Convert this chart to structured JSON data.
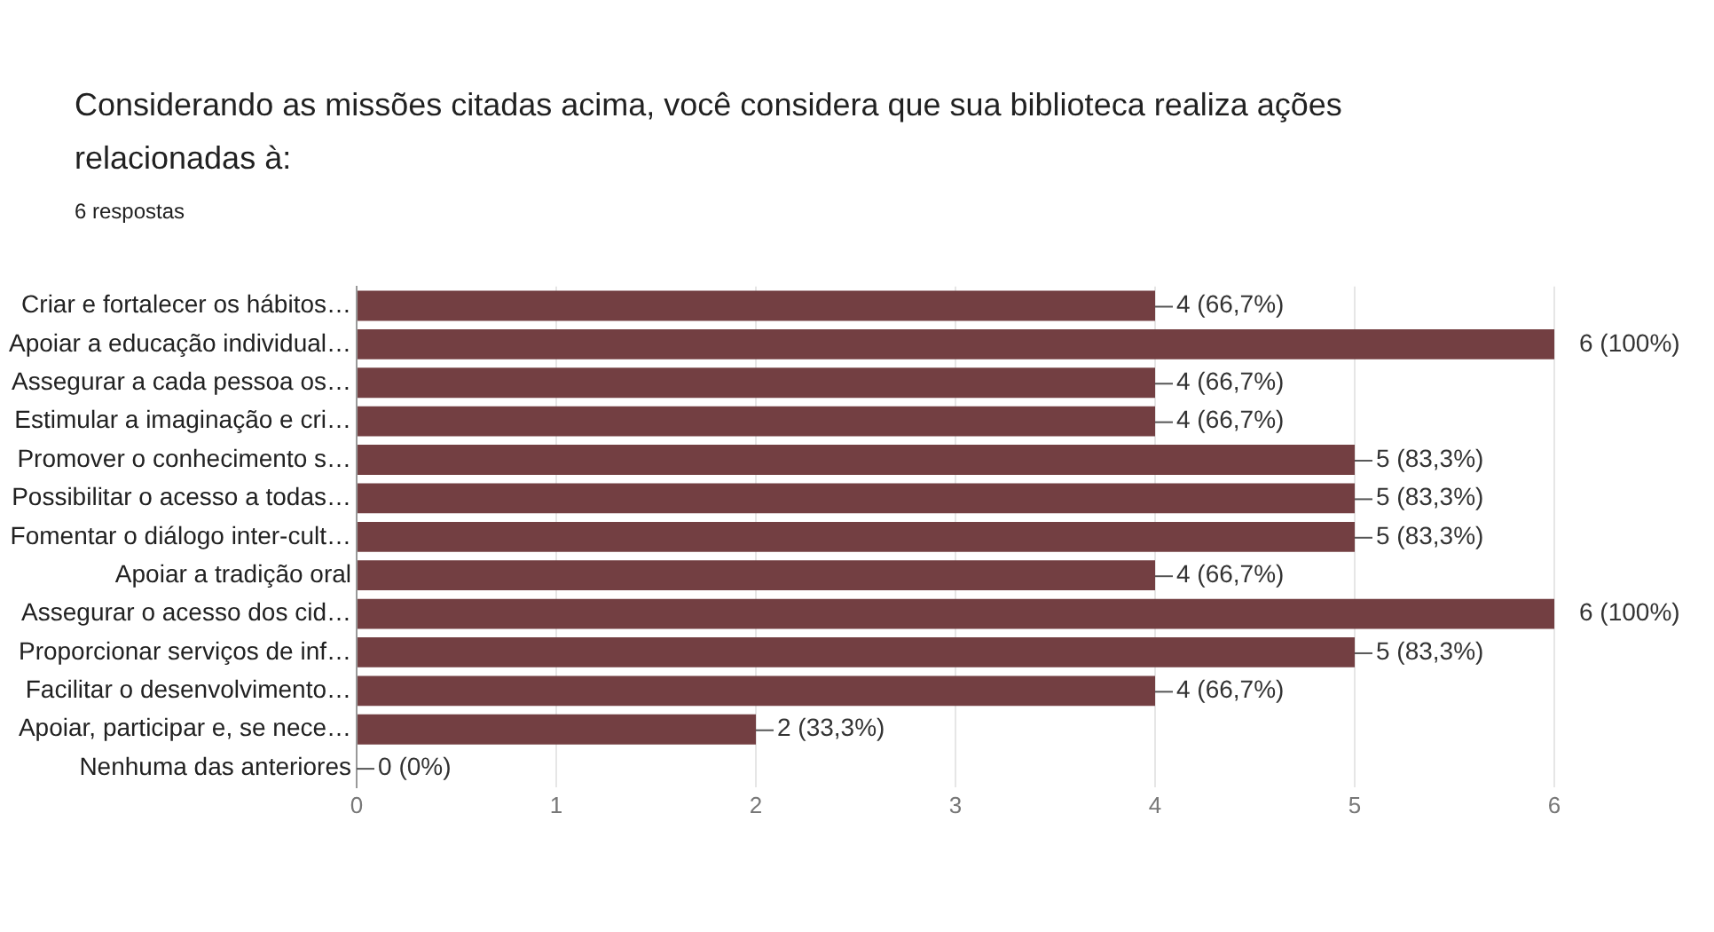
{
  "chart_data": {
    "type": "bar",
    "orientation": "horizontal",
    "title": "Considerando as missões citadas acima, você considera que sua biblioteca realiza ações relacionadas à:",
    "subtitle": "6 respostas",
    "categories": [
      "Criar e fortalecer os hábitos…",
      "Apoiar a educação individual…",
      "Assegurar a cada pessoa os…",
      "Estimular a imaginação e cri…",
      "Promover o conhecimento s…",
      "Possibilitar o acesso a todas…",
      "Fomentar o diálogo inter-cult…",
      "Apoiar a tradição oral",
      "Assegurar o acesso dos cid…",
      "Proporcionar serviços de inf…",
      "Facilitar o desenvolvimento…",
      "Apoiar, participar e, se nece…",
      "Nenhuma das anteriores"
    ],
    "values": [
      4,
      6,
      4,
      4,
      5,
      5,
      5,
      4,
      6,
      5,
      4,
      2,
      0
    ],
    "value_labels": [
      "4 (66,7%)",
      "6 (100%)",
      "4 (66,7%)",
      "4 (66,7%)",
      "5 (83,3%)",
      "5 (83,3%)",
      "5 (83,3%)",
      "4 (66,7%)",
      "6 (100%)",
      "5 (83,3%)",
      "4 (66,7%)",
      "2 (33,3%)",
      "0 (0%)"
    ],
    "color": "#733f42",
    "xlim": [
      0,
      6
    ],
    "xticks": [
      0,
      1,
      2,
      3,
      4,
      5,
      6
    ],
    "grid": "x",
    "legend": false
  }
}
